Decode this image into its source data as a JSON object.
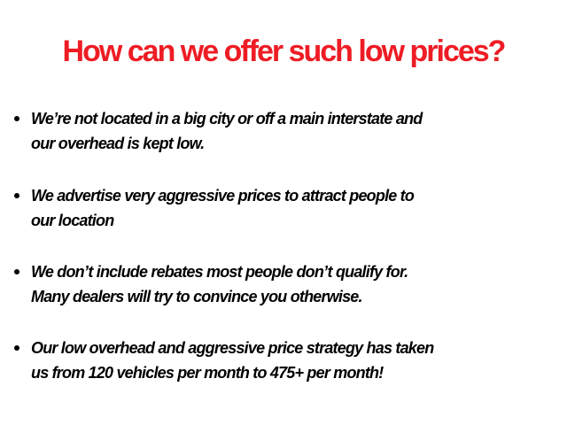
{
  "title": "How can we offer such low prices?",
  "colors": {
    "title": "#ee1c24",
    "text": "#000000"
  },
  "bullets": [
    {
      "lines": [
        "We’re not located in a big city or off a main interstate and",
        "our overhead is kept low."
      ]
    },
    {
      "lines": [
        "We advertise very aggressive prices to attract people to",
        "our location"
      ]
    },
    {
      "lines": [
        "We don’t include rebates most people don’t qualify for.",
        "Many dealers will try to convince you otherwise."
      ]
    },
    {
      "lines": [
        "Our low overhead and aggressive price strategy has taken",
        "us from 120 vehicles per month to 475+ per month!"
      ]
    }
  ]
}
